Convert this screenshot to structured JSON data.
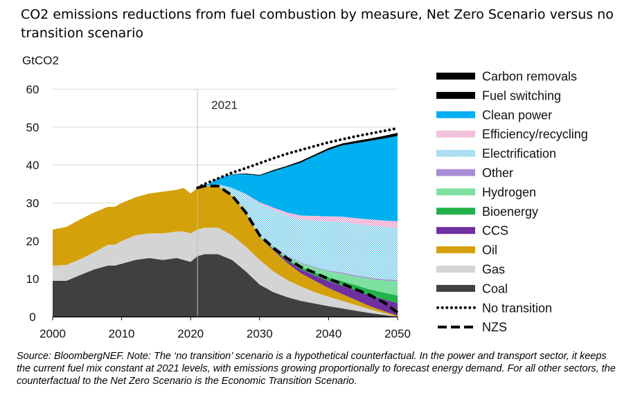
{
  "title": "CO2 emissions reductions from fuel combustion by measure, Net Zero Scenario versus no transition scenario",
  "source_note": "Source: BloombergNEF.  Note: The ‘no transition’ scenario is a hypothetical counterfactual. In the power and transport sector, it keeps the current fuel mix constant at 2021 levels, with emissions growing proportionally to forecast energy demand. For all other sectors, the counterfactual to the Net Zero Scenario is the Economic Transition Scenario.",
  "chart_data": {
    "type": "area",
    "title": "CO2 emissions reductions from fuel combustion by measure, Net Zero Scenario versus no transition scenario",
    "ylabel": "GtCO2",
    "xlabel": "",
    "xlim": [
      2000,
      2050
    ],
    "ylim": [
      0,
      60
    ],
    "x_ticks": [
      2000,
      2010,
      2020,
      2030,
      2040,
      2050
    ],
    "y_ticks": [
      0,
      10,
      20,
      30,
      40,
      50,
      60
    ],
    "grid": true,
    "legend_position": "right",
    "annotations": [
      {
        "text": "2021",
        "x": 2021
      }
    ],
    "x": [
      2000,
      2002,
      2004,
      2006,
      2008,
      2009,
      2010,
      2012,
      2014,
      2016,
      2018,
      2019,
      2020,
      2021,
      2022,
      2024,
      2026,
      2028,
      2030,
      2032,
      2034,
      2036,
      2038,
      2040,
      2042,
      2044,
      2046,
      2048,
      2050
    ],
    "stacked_series": [
      {
        "name": "Coal",
        "color": "#404040",
        "pattern": "solid",
        "values": [
          9.5,
          9.5,
          11,
          12.5,
          13.5,
          13.5,
          14,
          15,
          15.5,
          15,
          15.5,
          15,
          14.5,
          16,
          16.5,
          16.5,
          15,
          12,
          8.5,
          6.5,
          5.2,
          4.2,
          3.5,
          2.8,
          2.2,
          1.6,
          1.0,
          0.5,
          0.0
        ]
      },
      {
        "name": "Gas",
        "color": "#d4d4d4",
        "pattern": "solid",
        "values": [
          4,
          4.2,
          4.2,
          4.5,
          5.5,
          5.5,
          6,
          6.5,
          6.5,
          7,
          7,
          7.5,
          7.5,
          7,
          7,
          7,
          6.5,
          6.5,
          6.5,
          5.5,
          4.5,
          3.8,
          3.0,
          2.5,
          2.0,
          1.5,
          1.0,
          0.5,
          0.0
        ]
      },
      {
        "name": "Oil",
        "color": "#d4a10b",
        "pattern": "solid",
        "values": [
          9.5,
          10,
          10.5,
          10.5,
          10,
          10,
          10,
          10,
          10.5,
          11,
          11,
          11.5,
          10.5,
          11,
          11,
          11,
          10.5,
          9,
          6,
          5.5,
          4.5,
          3.5,
          3.0,
          2.3,
          1.8,
          1.3,
          0.8,
          0.5,
          0.3
        ]
      },
      {
        "name": "CCS",
        "color": "#7030a0",
        "pattern": "solid",
        "values": [
          0,
          0,
          0,
          0,
          0,
          0,
          0,
          0,
          0,
          0,
          0,
          0,
          0,
          0,
          0,
          0,
          0,
          0,
          0,
          0.3,
          0.6,
          1.0,
          1.4,
          1.8,
          2.2,
          2.5,
          2.8,
          3.1,
          3.3
        ]
      },
      {
        "name": "Bioenergy",
        "color": "#21b24b",
        "pattern": "solid",
        "values": [
          0,
          0,
          0,
          0,
          0,
          0,
          0,
          0,
          0,
          0,
          0,
          0,
          0,
          0,
          0,
          0,
          0,
          0,
          0,
          0.2,
          0.4,
          0.6,
          0.8,
          1.0,
          1.2,
          1.4,
          1.6,
          1.8,
          2.0
        ]
      },
      {
        "name": "Hydrogen",
        "color": "#7ee0a0",
        "pattern": "solid",
        "values": [
          0,
          0,
          0,
          0,
          0,
          0,
          0,
          0,
          0,
          0,
          0,
          0,
          0,
          0,
          0,
          0,
          0,
          0.1,
          0.2,
          0.4,
          0.7,
          1.0,
          1.3,
          1.6,
          2.0,
          2.3,
          2.8,
          3.2,
          3.8
        ]
      },
      {
        "name": "Other",
        "color": "#a98cd6",
        "pattern": "solid",
        "values": [
          0,
          0,
          0,
          0,
          0,
          0,
          0,
          0,
          0,
          0,
          0,
          0,
          0,
          0,
          0,
          0,
          0,
          0.1,
          0.1,
          0.1,
          0.2,
          0.2,
          0.2,
          0.2,
          0.3,
          0.3,
          0.3,
          0.3,
          0.3
        ]
      },
      {
        "name": "Electrification",
        "color": "#3fb7e0",
        "pattern": "dotted",
        "values": [
          0,
          0,
          0,
          0,
          0,
          0,
          0,
          0,
          0,
          0,
          0,
          0,
          0,
          0,
          0,
          0.5,
          2,
          4.5,
          8.5,
          9.7,
          10.6,
          11.4,
          12.2,
          13.0,
          13.3,
          13.6,
          13.8,
          13.8,
          13.7
        ]
      },
      {
        "name": "Efficiency/recycling",
        "color": "#e46fb1",
        "pattern": "dotted",
        "values": [
          0,
          0,
          0,
          0,
          0,
          0,
          0,
          0,
          0,
          0,
          0,
          0,
          0,
          0,
          0,
          0,
          0,
          0.2,
          0.4,
          0.6,
          0.8,
          1.0,
          1.2,
          1.3,
          1.4,
          1.5,
          1.6,
          1.7,
          1.8
        ]
      },
      {
        "name": "Clean power",
        "color": "#00b0f0",
        "pattern": "solid",
        "values": [
          0,
          0,
          0,
          0,
          0,
          0,
          0,
          0,
          0,
          0,
          0,
          0,
          0,
          0,
          0,
          1.5,
          3.5,
          5.2,
          7.0,
          9.6,
          12.0,
          14.0,
          15.8,
          17.5,
          18.8,
          19.8,
          20.7,
          21.6,
          22.5
        ]
      },
      {
        "name": "Fuel switching",
        "color": "#5a5a5a",
        "pattern": "checker",
        "values": [
          0,
          0,
          0,
          0,
          0,
          0,
          0,
          0,
          0,
          0,
          0,
          0,
          0,
          0,
          0,
          0,
          0,
          0,
          0,
          0,
          0,
          0,
          0,
          0,
          0,
          0,
          0,
          0,
          0
        ]
      },
      {
        "name": "Carbon removals",
        "color": "#c9b233",
        "pattern": "checker",
        "values": [
          0,
          0,
          0,
          0,
          0,
          0,
          0,
          0,
          0,
          0,
          0,
          0,
          0,
          0,
          0,
          0,
          0.1,
          0.2,
          0.2,
          0.3,
          0.3,
          0.4,
          0.4,
          0.5,
          0.5,
          0.6,
          0.6,
          0.7,
          0.8
        ]
      }
    ],
    "lines": [
      {
        "name": "No transition",
        "style": "dotted",
        "color": "#000000",
        "x": [
          2021,
          2022,
          2024,
          2026,
          2028,
          2030,
          2032,
          2034,
          2036,
          2038,
          2040,
          2042,
          2044,
          2046,
          2048,
          2050
        ],
        "values": [
          34,
          35,
          36.5,
          38,
          39.2,
          40.5,
          41.8,
          43,
          44,
          45,
          46,
          46.8,
          47.6,
          48.3,
          49,
          49.7
        ]
      },
      {
        "name": "NZS",
        "style": "dashed",
        "color": "#000000",
        "x": [
          2021,
          2022,
          2024,
          2026,
          2028,
          2030,
          2032,
          2034,
          2036,
          2038,
          2040,
          2042,
          2044,
          2046,
          2048,
          2050
        ],
        "values": [
          34,
          34.5,
          34.5,
          32,
          27.5,
          21.5,
          18.2,
          15.4,
          13.1,
          11.6,
          10.0,
          8.7,
          7.2,
          5.7,
          3.8,
          1.1
        ]
      }
    ],
    "legend_order": [
      "Carbon removals",
      "Fuel switching",
      "Clean power",
      "Efficiency/recycling",
      "Electrification",
      "Other",
      "Hydrogen",
      "Bioenergy",
      "CCS",
      "Oil",
      "Gas",
      "Coal",
      "No transition",
      "NZS"
    ]
  }
}
